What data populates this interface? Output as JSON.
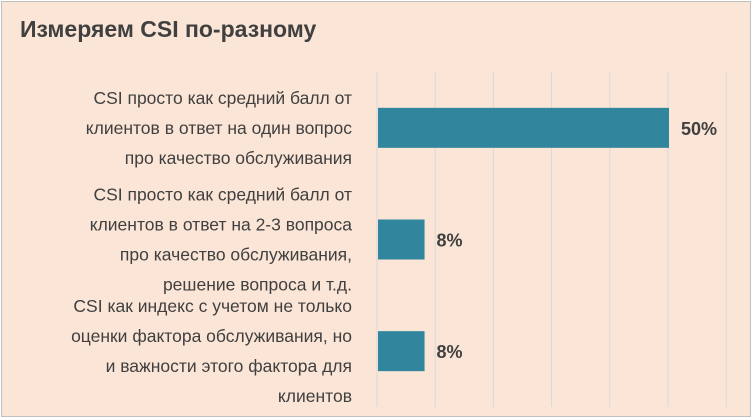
{
  "chart_data": {
    "type": "bar",
    "orientation": "horizontal",
    "title": "Измеряем CSI по-разному",
    "categories": [
      [
        "CSI просто как средний балл от",
        "клиентов в ответ на один вопрос",
        "про качество обслуживания"
      ],
      [
        "CSI просто как средний балл от",
        "клиентов в ответ на 2-3 вопроса",
        "про качество обслуживания,",
        "решение вопроса и т.д."
      ],
      [
        "CSI как индекс с учетом не только",
        "оценки фактора обслуживания, но",
        "и важности этого фактора для",
        "клиентов"
      ]
    ],
    "values": [
      50,
      8,
      8
    ],
    "value_labels": [
      "50%",
      "8%",
      "8%"
    ],
    "xlim": [
      0,
      60
    ],
    "grid": true,
    "legend": "none",
    "colors": {
      "bar": "#31859c",
      "background": "#fbe5d6",
      "gridline": "#d9d9d9",
      "text": "#404040"
    }
  }
}
